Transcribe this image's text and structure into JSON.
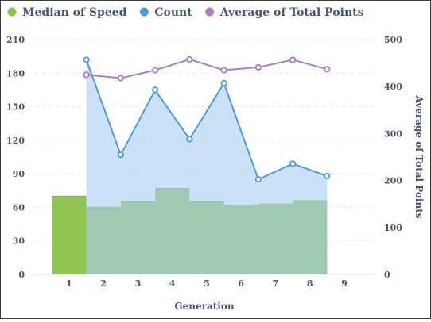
{
  "chart_data": {
    "type": "combo",
    "legend": {
      "placement": "top-left",
      "items": [
        {
          "label": "Median of Speed",
          "color": "#8bc34a"
        },
        {
          "label": "Count",
          "color": "#4a9fd9"
        },
        {
          "label": "Average of Total Points",
          "color": "#a97fc2"
        }
      ]
    },
    "xlabel": "Generation",
    "ylabel_left": "",
    "ylabel_right": "Average of Total Points",
    "x_ticks": [
      "1",
      "2",
      "3",
      "4",
      "5",
      "6",
      "7",
      "8",
      "9"
    ],
    "y_left_ticks": [
      "0",
      "30",
      "60",
      "90",
      "120",
      "150",
      "180",
      "210"
    ],
    "y_right_ticks": [
      "0",
      "100",
      "200",
      "300",
      "400",
      "500"
    ],
    "ylim_left": [
      0,
      210
    ],
    "ylim_right": [
      0,
      500
    ],
    "grid": true,
    "series": [
      {
        "name": "Median of Speed",
        "kind": "step-area",
        "axis": "left",
        "color": "#8bc34a",
        "x": [
          1,
          2,
          3,
          4,
          5,
          6,
          7,
          8
        ],
        "values": [
          70,
          60,
          65,
          77,
          65,
          62,
          63,
          66
        ]
      },
      {
        "name": "Count",
        "kind": "area-line",
        "axis": "left",
        "color": "#4a9fd9",
        "x": [
          1,
          2,
          3,
          4,
          5,
          6,
          7,
          8
        ],
        "values": [
          192,
          107,
          165,
          121,
          171,
          85,
          99,
          88
        ]
      },
      {
        "name": "Average of Total Points",
        "kind": "line",
        "axis": "right",
        "color": "#a97fc2",
        "x": [
          1,
          2,
          3,
          4,
          5,
          6,
          7,
          8
        ],
        "values": [
          425,
          418,
          435,
          458,
          435,
          441,
          457,
          437
        ]
      }
    ]
  }
}
